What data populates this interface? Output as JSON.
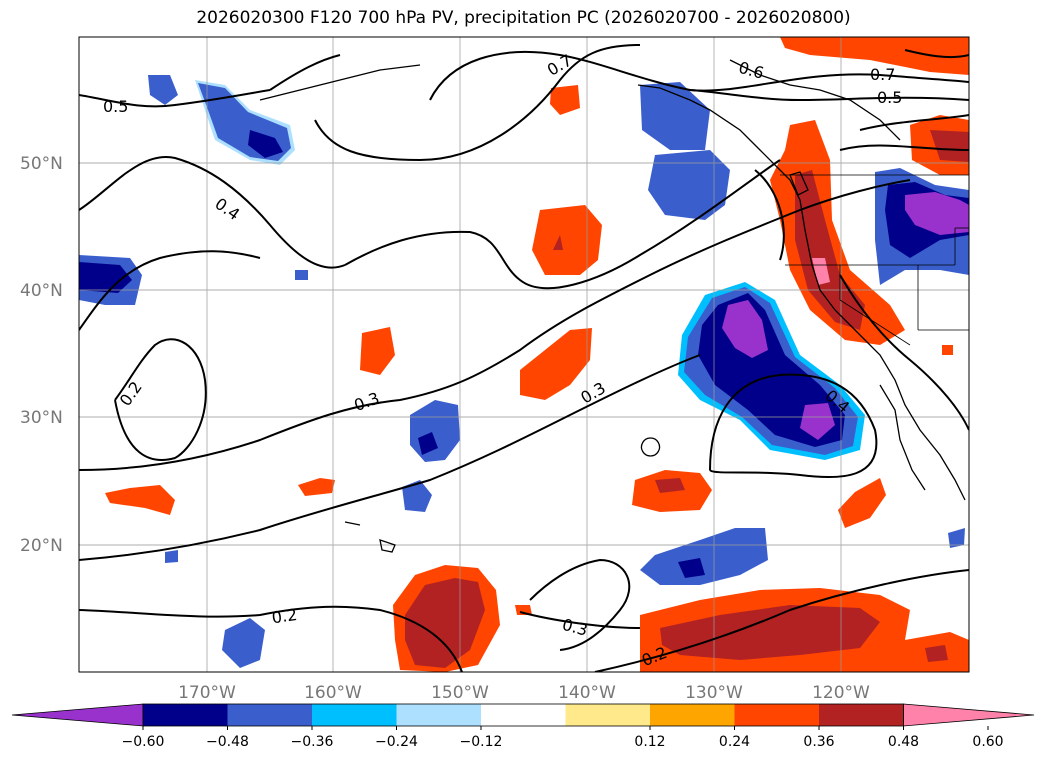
{
  "title": "2026020300 F120 700 hPa PV, precipitation PC (2026020700 - 2026020800)",
  "map": {
    "lat_labels": [
      "50°N",
      "40°N",
      "30°N",
      "20°N"
    ],
    "lon_labels": [
      "170°W",
      "160°W",
      "150°W",
      "140°W",
      "130°W",
      "120°W"
    ],
    "contour_labels": [
      "0.5",
      "0.4",
      "0.2",
      "0.3",
      "0.7",
      "0.6",
      "0.7",
      "0.5",
      "0.3",
      "0.4",
      "0.2",
      "0.3",
      "0.2"
    ],
    "grid": true,
    "coastlines": true,
    "shading_colors": {
      "neg_strong": "#9932CC",
      "neg_dark": "#00008B",
      "neg_mid": "#3A5FCD",
      "neg_light": "#00BFFF",
      "neg_pale": "#ADDFFF",
      "pos_pale": "#FFE98A",
      "pos_light": "#FFA500",
      "pos_mid": "#FF4500",
      "pos_dark": "#B22222",
      "pos_strong": "#FF82AB"
    }
  },
  "colorbar": {
    "ticks": [
      "−0.60",
      "−0.48",
      "−0.36",
      "−0.24",
      "−0.12",
      "0.12",
      "0.24",
      "0.36",
      "0.48",
      "0.60"
    ],
    "colors": [
      "#9932CC",
      "#00008B",
      "#3A5FCD",
      "#00BFFF",
      "#ADDFFF",
      "#FFFFFF",
      "#FFE98A",
      "#FFA500",
      "#FF4500",
      "#B22222",
      "#FF82AB"
    ]
  }
}
